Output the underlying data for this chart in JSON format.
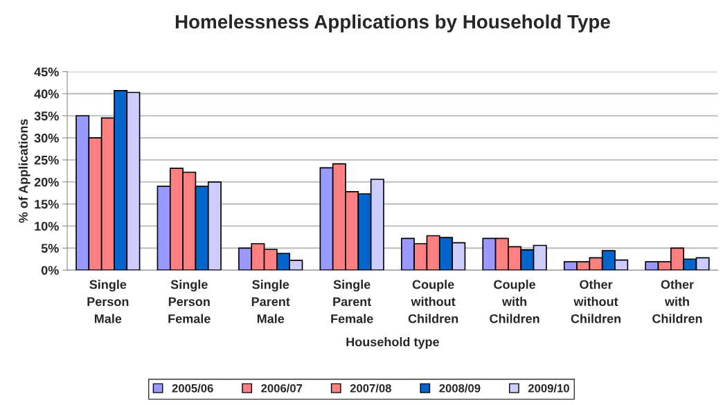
{
  "chart_data": {
    "type": "bar",
    "title": "Homelessness Applications by Household Type",
    "xlabel": "Household type",
    "ylabel": "% of Applications",
    "categories": [
      "Single\nPerson\nMale",
      "Single\nPerson\nFemale",
      "Single\nParent\nMale",
      "Single\nParent\nFemale",
      "Couple\nwithout\nChildren",
      "Couple\nwith\nChildren",
      "Other\nwithout\nChildren",
      "Other\nwith\nChildren"
    ],
    "series": [
      {
        "name": "2005/06",
        "color": "#9999ff",
        "values": [
          35,
          19,
          5,
          23.2,
          7.2,
          7.2,
          1.9,
          1.9
        ]
      },
      {
        "name": "2006/07",
        "color": "#ff8080",
        "values": [
          30,
          23.1,
          6,
          24.1,
          6,
          7.2,
          1.9,
          1.9
        ]
      },
      {
        "name": "2007/08",
        "color": "#ff8080",
        "values": [
          34.5,
          22.2,
          4.7,
          17.8,
          7.8,
          5.3,
          2.8,
          5
        ]
      },
      {
        "name": "2008/09",
        "color": "#0066cc",
        "values": [
          40.7,
          19,
          3.8,
          17.3,
          7.4,
          4.6,
          4.4,
          2.5
        ]
      },
      {
        "name": "2009/10",
        "color": "#ccccff",
        "values": [
          40.3,
          20,
          2.2,
          20.6,
          6.2,
          5.6,
          2.3,
          2.8
        ]
      }
    ],
    "ylim": [
      0,
      45
    ],
    "yticks": [
      {
        "value": 0,
        "label": "0%"
      },
      {
        "value": 5,
        "label": "5%"
      },
      {
        "value": 10,
        "label": "10%"
      },
      {
        "value": 15,
        "label": "15%"
      },
      {
        "value": 20,
        "label": "20%"
      },
      {
        "value": 25,
        "label": "25%"
      },
      {
        "value": 30,
        "label": "30%"
      },
      {
        "value": 35,
        "label": "35%"
      },
      {
        "value": 40,
        "label": "40%"
      },
      {
        "value": 45,
        "label": "45%"
      }
    ],
    "grid": "y",
    "legend": "bottom"
  }
}
